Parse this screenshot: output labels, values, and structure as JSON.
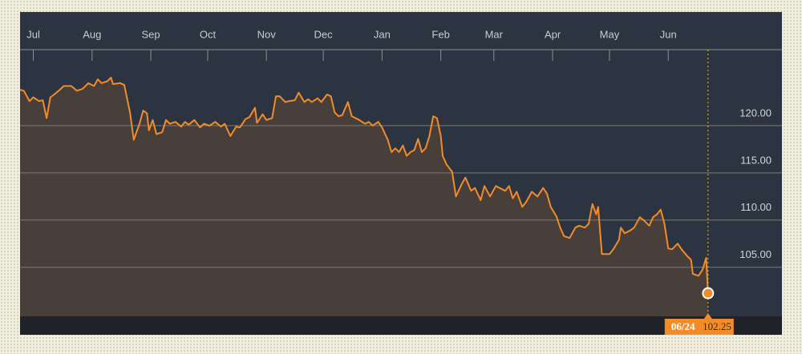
{
  "chart_data": {
    "type": "line",
    "cursor_label": "06/24",
    "xlim": [
      -7,
      395
    ],
    "xticks": [
      {
        "value": 0,
        "label": "Jul"
      },
      {
        "value": 31,
        "label": "Aug"
      },
      {
        "value": 62,
        "label": "Sep"
      },
      {
        "value": 92,
        "label": "Oct"
      },
      {
        "value": 123,
        "label": "Nov"
      },
      {
        "value": 153,
        "label": "Dec"
      },
      {
        "value": 184,
        "label": "Jan"
      },
      {
        "value": 215,
        "label": "Feb"
      },
      {
        "value": 243,
        "label": "Mar"
      },
      {
        "value": 274,
        "label": "Apr"
      },
      {
        "value": 304,
        "label": "May"
      },
      {
        "value": 335,
        "label": "Jun"
      }
    ],
    "ylim": [
      99.8,
      128.05
    ],
    "yticks": [
      {
        "value": 105,
        "label": "105.00"
      },
      {
        "value": 110,
        "label": "110.00"
      },
      {
        "value": 115,
        "label": "115.00"
      },
      {
        "value": 120,
        "label": "120.00"
      }
    ],
    "grid": true,
    "series": [
      {
        "color": "#f28c28",
        "x": [
          -7,
          -5,
          -2,
          0,
          3,
          5,
          7,
          9,
          11,
          14,
          16,
          20,
          23,
          26,
          29,
          32,
          34,
          36,
          39,
          41,
          42,
          46,
          48,
          51,
          53,
          56,
          58,
          60,
          61,
          63,
          65,
          68,
          70,
          72,
          75,
          78,
          80,
          82,
          85,
          88,
          90,
          93,
          96,
          99,
          101,
          104,
          107,
          109,
          112,
          114,
          117,
          118,
          121,
          123,
          126,
          128,
          130,
          133,
          135,
          138,
          140,
          143,
          145,
          147,
          150,
          152,
          155,
          157,
          159,
          161,
          163,
          166,
          168,
          172,
          175,
          177,
          179,
          182,
          184,
          187,
          189,
          191,
          193,
          195,
          197,
          199,
          201,
          203,
          205,
          207,
          209,
          211,
          213,
          215,
          216,
          218,
          221,
          223,
          226,
          228,
          231,
          233,
          236,
          238,
          241,
          244,
          246,
          249,
          251,
          253,
          255,
          258,
          260,
          263,
          266,
          269,
          271,
          273,
          276,
          278,
          280,
          283,
          286,
          288,
          291,
          293,
          295,
          297,
          298,
          300,
          304,
          306,
          309,
          310,
          312,
          315,
          317,
          320,
          322,
          325,
          327,
          329,
          331,
          333,
          335,
          337,
          340,
          342,
          345,
          347,
          348,
          351,
          353,
          354,
          355,
          356
        ],
        "values": [
          123.8,
          123.7,
          122.6,
          123.0,
          122.6,
          122.7,
          120.8,
          123.0,
          123.3,
          123.8,
          124.2,
          124.2,
          123.7,
          123.9,
          124.5,
          124.2,
          124.9,
          124.5,
          124.7,
          125.1,
          124.4,
          124.5,
          124.3,
          121.4,
          118.5,
          120.2,
          121.6,
          121.3,
          119.5,
          120.6,
          119.1,
          119.3,
          120.6,
          120.2,
          120.4,
          119.9,
          120.4,
          120.1,
          120.6,
          119.8,
          120.2,
          120.0,
          120.4,
          119.9,
          120.2,
          118.9,
          119.9,
          119.8,
          120.7,
          120.9,
          121.9,
          120.3,
          121.2,
          120.6,
          120.8,
          123.1,
          123.1,
          122.5,
          122.6,
          122.7,
          123.5,
          122.5,
          122.8,
          122.5,
          122.9,
          122.5,
          123.3,
          123.1,
          121.4,
          121.0,
          121.1,
          122.5,
          121.0,
          120.6,
          120.2,
          120.4,
          120.0,
          120.4,
          119.8,
          118.5,
          117.2,
          117.6,
          117.2,
          117.9,
          116.8,
          117.2,
          117.4,
          118.6,
          117.2,
          117.6,
          118.9,
          121.0,
          120.8,
          118.9,
          116.8,
          115.9,
          115.1,
          112.5,
          113.8,
          114.5,
          113.1,
          113.4,
          112.1,
          113.6,
          112.5,
          113.6,
          113.4,
          113.1,
          113.6,
          112.3,
          113.0,
          111.4,
          111.9,
          113.0,
          112.5,
          113.4,
          112.8,
          111.4,
          110.4,
          109.2,
          108.3,
          108.1,
          109.2,
          109.4,
          109.2,
          109.6,
          111.7,
          110.6,
          111.4,
          106.4,
          106.4,
          106.9,
          107.9,
          109.2,
          108.6,
          108.9,
          109.2,
          110.3,
          110.0,
          109.4,
          110.3,
          110.6,
          111.1,
          109.6,
          107.0,
          106.9,
          107.5,
          106.9,
          106.2,
          105.8,
          104.3,
          104.1,
          104.7,
          105.3,
          106.0,
          102.25
        ]
      }
    ]
  }
}
